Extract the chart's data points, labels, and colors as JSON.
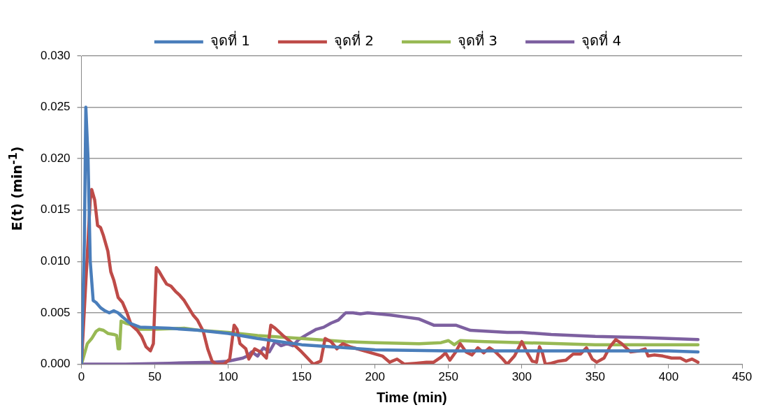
{
  "chart_data": {
    "type": "line",
    "xlabel": "Time (min)",
    "ylabel": "E(t) (min$^{-1}$)",
    "xlim": [
      0,
      450
    ],
    "xticks": [
      0,
      50,
      100,
      150,
      200,
      250,
      300,
      350,
      400,
      450
    ],
    "ylim": [
      0,
      0.03
    ],
    "yticks": [
      {
        "value": 0,
        "label": "0.000"
      },
      {
        "value": 0.005,
        "label": "0.005"
      },
      {
        "value": 0.01,
        "label": "0.010"
      },
      {
        "value": 0.015,
        "label": "0.015"
      },
      {
        "value": 0.02,
        "label": "0.020"
      },
      {
        "value": 0.025,
        "label": "0.025"
      },
      {
        "value": 0.03,
        "label": "0.030"
      }
    ],
    "grid": "y",
    "legend": "top",
    "marker": "none",
    "line_style": "solid",
    "series": [
      {
        "name": "จุดที่ 1",
        "color": "#4a7ebb",
        "x": [
          0,
          2,
          3,
          4.5,
          6,
          8,
          10,
          13,
          16,
          19,
          22,
          25,
          28,
          33,
          40,
          60,
          80,
          100,
          120,
          150,
          180,
          200,
          250,
          300,
          350,
          400,
          420
        ],
        "values": [
          0,
          0.012,
          0.025,
          0.02,
          0.01,
          0.0062,
          0.006,
          0.0055,
          0.0052,
          0.005,
          0.0052,
          0.005,
          0.0046,
          0.004,
          0.0036,
          0.0035,
          0.0033,
          0.003,
          0.0025,
          0.0019,
          0.0016,
          0.0014,
          0.0013,
          0.0013,
          0.0013,
          0.0013,
          0.0012
        ]
      },
      {
        "name": "จุดที่ 2",
        "color": "#be4b48",
        "x": [
          0,
          3,
          6,
          7,
          9,
          11,
          13,
          15,
          18,
          20,
          22,
          25,
          28,
          31,
          34,
          38,
          41,
          44,
          47,
          49,
          51,
          53,
          55,
          58,
          61,
          64,
          67,
          70,
          73,
          76,
          79,
          83,
          86,
          89,
          92,
          97,
          101,
          104,
          106,
          108,
          112,
          114,
          118,
          122,
          126,
          129,
          132,
          138,
          144,
          150,
          156,
          158,
          163,
          166,
          170,
          174,
          178,
          183,
          195,
          205,
          210,
          215,
          220,
          228,
          235,
          240,
          245,
          248,
          251,
          255,
          258,
          262,
          266,
          270,
          274,
          278,
          282,
          287,
          290,
          295,
          300,
          303,
          307,
          310,
          312,
          314,
          316,
          320,
          325,
          330,
          335,
          340,
          344,
          348,
          351,
          356,
          360,
          364,
          368,
          374,
          380,
          384,
          386,
          390,
          396,
          402,
          408,
          412,
          416,
          420
        ],
        "values": [
          0,
          0.008,
          0.016,
          0.017,
          0.016,
          0.0135,
          0.0133,
          0.0125,
          0.011,
          0.009,
          0.0082,
          0.0065,
          0.006,
          0.005,
          0.0038,
          0.0033,
          0.0027,
          0.0017,
          0.0013,
          0.002,
          0.0094,
          0.009,
          0.0085,
          0.0078,
          0.0076,
          0.0071,
          0.0067,
          0.0062,
          0.0055,
          0.0048,
          0.0043,
          0.0032,
          0.0015,
          0.0003,
          0,
          0,
          0.0005,
          0.0038,
          0.0034,
          0.002,
          0.0015,
          0.0005,
          0.0015,
          0.0012,
          0.0006,
          0.0038,
          0.0035,
          0.0027,
          0.002,
          0.0012,
          0.0003,
          0,
          0.0003,
          0.0025,
          0.0022,
          0.0015,
          0.002,
          0.0017,
          0.0012,
          0.0008,
          0.0002,
          0.0005,
          0,
          0.0001,
          0.0002,
          0.0002,
          0.0007,
          0.0011,
          0.0004,
          0.0012,
          0.002,
          0.0012,
          0.0009,
          0.0016,
          0.0011,
          0.0016,
          0.0012,
          0.0005,
          0,
          0.0008,
          0.0022,
          0.0013,
          0.0003,
          0.0002,
          0.0017,
          0.0011,
          0,
          0.0001,
          0.0003,
          0.0004,
          0.001,
          0.001,
          0.0016,
          0.0005,
          0.0002,
          0.0006,
          0.0017,
          0.0024,
          0.002,
          0.0012,
          0.0013,
          0.0015,
          0.0008,
          0.0009,
          0.0008,
          0.0006,
          0.0006,
          0.0003,
          0.0005,
          0.0002
        ]
      },
      {
        "name": "จุดที่ 3",
        "color": "#98b954",
        "x": [
          0,
          4,
          7,
          10,
          12,
          15,
          18,
          22,
          24,
          25,
          26,
          27,
          30,
          35,
          38,
          50,
          70,
          80,
          100,
          120,
          150,
          180,
          200,
          230,
          245,
          250,
          254,
          258,
          275,
          300,
          350,
          400,
          420
        ],
        "values": [
          0,
          0.002,
          0.0025,
          0.0032,
          0.0034,
          0.0033,
          0.003,
          0.0029,
          0.0028,
          0.0015,
          0.0015,
          0.0042,
          0.004,
          0.0038,
          0.0034,
          0.0034,
          0.0035,
          0.0033,
          0.0031,
          0.0028,
          0.0025,
          0.0022,
          0.0021,
          0.002,
          0.0021,
          0.0023,
          0.0019,
          0.0023,
          0.0022,
          0.0021,
          0.0019,
          0.0019,
          0.0019
        ]
      },
      {
        "name": "จุดที่ 4",
        "color": "#7d60a0",
        "x": [
          0,
          30,
          60,
          90,
          100,
          110,
          113,
          116,
          120,
          124,
          128,
          132,
          136,
          140,
          144,
          148,
          155,
          160,
          165,
          170,
          175,
          180,
          185,
          190,
          195,
          210,
          220,
          230,
          240,
          255,
          265,
          290,
          300,
          320,
          350,
          380,
          400,
          420
        ],
        "values": [
          0,
          0,
          0.0001,
          0.0002,
          0.0003,
          0.0006,
          0.0008,
          0.0012,
          0.0008,
          0.0016,
          0.0012,
          0.0022,
          0.0018,
          0.002,
          0.0018,
          0.0024,
          0.003,
          0.0034,
          0.0036,
          0.004,
          0.0043,
          0.005,
          0.005,
          0.0049,
          0.005,
          0.0048,
          0.0046,
          0.0044,
          0.0038,
          0.0038,
          0.0033,
          0.0031,
          0.0031,
          0.0029,
          0.0027,
          0.0026,
          0.0025,
          0.0024
        ]
      }
    ]
  }
}
